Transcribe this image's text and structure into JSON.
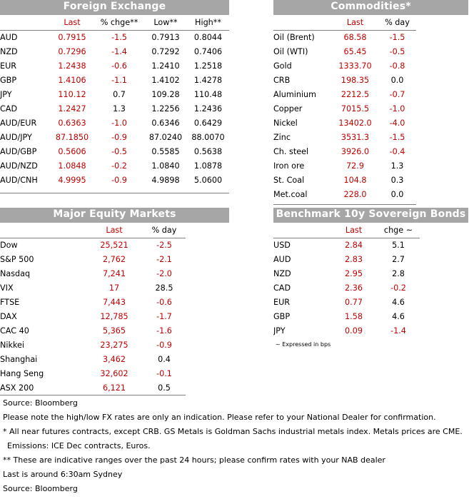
{
  "fx": {
    "title": "Foreign Exchange",
    "headers": [
      "",
      "Last",
      "% chge**",
      "Low**",
      "High**"
    ],
    "rows": [
      [
        "AUD",
        "0.7915",
        "-1.5",
        "0.7913",
        "0.8044"
      ],
      [
        "NZD",
        "0.7296",
        "-1.4",
        "0.7292",
        "0.7406"
      ],
      [
        "EUR",
        "1.2438",
        "-0.6",
        "1.2410",
        "1.2518"
      ],
      [
        "GBP",
        "1.4106",
        "-1.1",
        "1.4102",
        "1.4278"
      ],
      [
        "JPY",
        "110.12",
        "0.7",
        "109.28",
        "110.48"
      ],
      [
        "CAD",
        "1.2427",
        "1.3",
        "1.2256",
        "1.2436"
      ],
      [
        "AUD/EUR",
        "0.6363",
        "-1.0",
        "0.6346",
        "0.6429"
      ],
      [
        "AUD/JPY",
        "87.1850",
        "-0.9",
        "87.0240",
        "88.0070"
      ],
      [
        "AUD/GBP",
        "0.5606",
        "-0.5",
        "0.5585",
        "0.5638"
      ],
      [
        "AUD/NZD",
        "1.0848",
        "-0.2",
        "1.0840",
        "1.0878"
      ],
      [
        "AUD/CNH",
        "4.9995",
        "-0.9",
        "4.9898",
        "5.0600"
      ]
    ]
  },
  "commodities": {
    "title": "Commodities*",
    "headers": [
      "",
      "Last",
      "% day"
    ],
    "rows": [
      [
        "Oil (Brent)",
        "68.58",
        "-1.5"
      ],
      [
        "Oil (WTI)",
        "65.45",
        "-0.5"
      ],
      [
        "Gold",
        "1333.70",
        "-0.8"
      ],
      [
        "CRB",
        "198.35",
        "0.0"
      ],
      [
        "Aluminium",
        "2212.5",
        "-0.7"
      ],
      [
        "Copper",
        "7015.5",
        "-1.0"
      ],
      [
        "Nickel",
        "13402.0",
        "-4.0"
      ],
      [
        "Zinc",
        "3531.3",
        "-1.5"
      ],
      [
        "Ch. steel",
        "3926.0",
        "-0.4"
      ],
      [
        "Iron ore",
        "72.9",
        "1.3"
      ],
      [
        "St. Coal",
        "104.8",
        "0.3"
      ],
      [
        "Met.coal",
        "228.0",
        "0.0"
      ]
    ]
  },
  "equity": {
    "title": "Major Equity Markets",
    "headers": [
      "",
      "Last",
      "% day"
    ],
    "rows": [
      [
        "Dow",
        "25,521",
        "-2.5"
      ],
      [
        "S&P 500",
        "2,762",
        "-2.1"
      ],
      [
        "Nasdaq",
        "7,241",
        "-2.0"
      ],
      [
        "VIX",
        "17",
        "28.5"
      ],
      [
        "FTSE",
        "7,443",
        "-0.6"
      ],
      [
        "DAX",
        "12,785",
        "-1.7"
      ],
      [
        "CAC 40",
        "5,365",
        "-1.6"
      ],
      [
        "Nikkei",
        "23,275",
        "-0.9"
      ],
      [
        "Shanghai",
        "3,462",
        "0.4"
      ],
      [
        "Hang Seng",
        "32,602",
        "-0.1"
      ],
      [
        "ASX 200",
        "6,121",
        "0.5"
      ]
    ]
  },
  "bonds": {
    "title": "Benchmark 10y Sovereign  Bonds",
    "headers": [
      "",
      "Last",
      "chge ~"
    ],
    "rows": [
      [
        "USD",
        "2.84",
        "5.1"
      ],
      [
        "AUD",
        "2.83",
        "2.7"
      ],
      [
        "NZD",
        "2.95",
        "2.8"
      ],
      [
        "CAD",
        "2.36",
        "-0.2"
      ],
      [
        "EUR",
        "0.77",
        "4.6"
      ],
      [
        "GBP",
        "1.58",
        "4.6"
      ],
      [
        "JPY",
        "0.09",
        "-1.4"
      ]
    ],
    "footnote": "~ Expressed in bps"
  },
  "notes": {
    "source1": "Source: Bloomberg",
    "hilo": "Please note the high/low FX rates are only an indication. Please refer to your National Dealer for confirmation.",
    "futures": "* All near futures contracts, except CRB.  GS Metals is Goldman Sachs industrial metals index.  Metals prices are CME.",
    "emissions": "Emissions: ICE Dec contracts, Euros.",
    "ranges": "** These are indicative ranges over the past 24 hours; please confirm rates with your NAB dealer",
    "last": "Last is around 6:30am Sydney",
    "source2": "Source: Bloomberg"
  },
  "colors": {
    "header_bg": "#a6a6a6",
    "header_text": "#ffffff",
    "value_red": "#c00000",
    "rule": "#7f7f7f"
  }
}
